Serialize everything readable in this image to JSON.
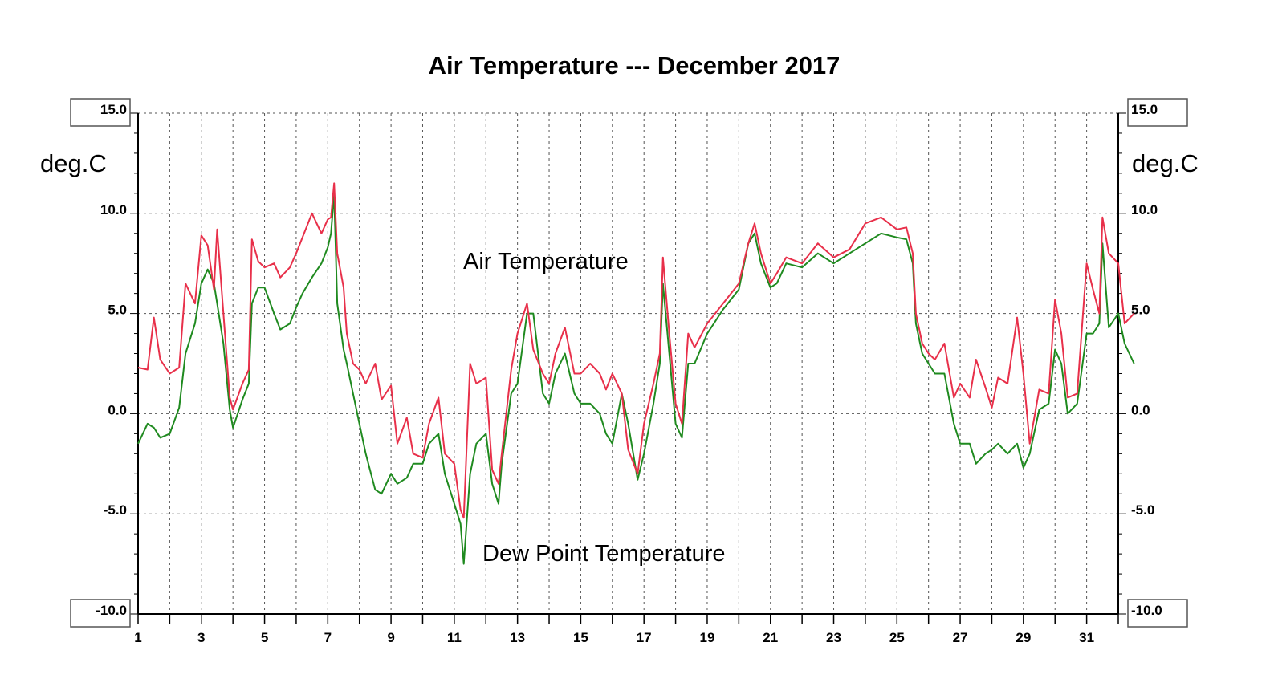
{
  "chart_data": {
    "type": "line",
    "title": "Air Temperature --- December 2017",
    "ylabel_left": "deg.C",
    "ylabel_right": "deg.C",
    "xlabel": "",
    "xlim": [
      1,
      32
    ],
    "ylim": [
      -10,
      15
    ],
    "x_tick_labels": [
      "1",
      "3",
      "5",
      "7",
      "9",
      "11",
      "13",
      "15",
      "17",
      "19",
      "21",
      "23",
      "25",
      "27",
      "29",
      "31"
    ],
    "y_tick_labels": [
      "15.0",
      "10.0",
      "5.0",
      "0.0",
      "-5.0",
      "-10.0"
    ],
    "grid": true,
    "annotations": [
      "Air Temperature",
      "Dew Point Temperature"
    ],
    "series": [
      {
        "name": "Air Temperature",
        "color": "#e8304a",
        "points": [
          [
            1.0,
            2.3
          ],
          [
            1.3,
            2.2
          ],
          [
            1.5,
            4.8
          ],
          [
            1.7,
            2.7
          ],
          [
            2.0,
            2.0
          ],
          [
            2.3,
            2.3
          ],
          [
            2.5,
            6.5
          ],
          [
            2.8,
            5.5
          ],
          [
            3.0,
            8.9
          ],
          [
            3.2,
            8.4
          ],
          [
            3.4,
            6.2
          ],
          [
            3.5,
            9.2
          ],
          [
            3.7,
            5.0
          ],
          [
            3.9,
            0.8
          ],
          [
            4.0,
            0.2
          ],
          [
            4.3,
            1.5
          ],
          [
            4.5,
            2.2
          ],
          [
            4.6,
            8.7
          ],
          [
            4.8,
            7.6
          ],
          [
            5.0,
            7.3
          ],
          [
            5.3,
            7.5
          ],
          [
            5.5,
            6.8
          ],
          [
            5.8,
            7.3
          ],
          [
            6.0,
            8.0
          ],
          [
            6.2,
            8.8
          ],
          [
            6.5,
            10.0
          ],
          [
            6.8,
            9.0
          ],
          [
            7.0,
            9.7
          ],
          [
            7.1,
            9.8
          ],
          [
            7.2,
            11.5
          ],
          [
            7.3,
            8.0
          ],
          [
            7.5,
            6.3
          ],
          [
            7.6,
            4.0
          ],
          [
            7.8,
            2.5
          ],
          [
            8.0,
            2.2
          ],
          [
            8.2,
            1.5
          ],
          [
            8.5,
            2.5
          ],
          [
            8.7,
            0.7
          ],
          [
            9.0,
            1.4
          ],
          [
            9.2,
            -1.5
          ],
          [
            9.5,
            -0.2
          ],
          [
            9.7,
            -2.0
          ],
          [
            10.0,
            -2.2
          ],
          [
            10.2,
            -0.5
          ],
          [
            10.5,
            0.8
          ],
          [
            10.7,
            -2.0
          ],
          [
            11.0,
            -2.5
          ],
          [
            11.2,
            -4.8
          ],
          [
            11.3,
            -5.2
          ],
          [
            11.5,
            2.5
          ],
          [
            11.7,
            1.5
          ],
          [
            12.0,
            1.8
          ],
          [
            12.2,
            -2.8
          ],
          [
            12.4,
            -3.5
          ],
          [
            12.5,
            -2.0
          ],
          [
            12.8,
            2.2
          ],
          [
            13.0,
            4.0
          ],
          [
            13.3,
            5.5
          ],
          [
            13.5,
            3.2
          ],
          [
            13.8,
            2.0
          ],
          [
            14.0,
            1.5
          ],
          [
            14.2,
            3.0
          ],
          [
            14.5,
            4.3
          ],
          [
            14.8,
            2.0
          ],
          [
            15.0,
            2.0
          ],
          [
            15.3,
            2.5
          ],
          [
            15.6,
            2.0
          ],
          [
            15.8,
            1.2
          ],
          [
            16.0,
            2.0
          ],
          [
            16.3,
            1.0
          ],
          [
            16.5,
            -1.8
          ],
          [
            16.8,
            -3.0
          ],
          [
            17.0,
            -0.5
          ],
          [
            17.3,
            1.5
          ],
          [
            17.5,
            3.0
          ],
          [
            17.6,
            7.8
          ],
          [
            17.8,
            4.0
          ],
          [
            18.0,
            0.5
          ],
          [
            18.2,
            -0.5
          ],
          [
            18.4,
            4.0
          ],
          [
            18.6,
            3.3
          ],
          [
            19.0,
            4.5
          ],
          [
            19.5,
            5.5
          ],
          [
            20.0,
            6.5
          ],
          [
            20.3,
            8.5
          ],
          [
            20.5,
            9.5
          ],
          [
            20.7,
            8.0
          ],
          [
            21.0,
            6.5
          ],
          [
            21.2,
            7.0
          ],
          [
            21.5,
            7.8
          ],
          [
            22.0,
            7.5
          ],
          [
            22.5,
            8.5
          ],
          [
            23.0,
            7.8
          ],
          [
            23.5,
            8.2
          ],
          [
            24.0,
            9.5
          ],
          [
            24.5,
            9.8
          ],
          [
            25.0,
            9.2
          ],
          [
            25.3,
            9.3
          ],
          [
            25.5,
            8.0
          ],
          [
            25.6,
            5.0
          ],
          [
            25.8,
            3.5
          ],
          [
            26.0,
            3.0
          ],
          [
            26.2,
            2.7
          ],
          [
            26.5,
            3.5
          ],
          [
            26.8,
            0.8
          ],
          [
            27.0,
            1.5
          ],
          [
            27.3,
            0.8
          ],
          [
            27.5,
            2.7
          ],
          [
            27.8,
            1.3
          ],
          [
            28.0,
            0.3
          ],
          [
            28.2,
            1.8
          ],
          [
            28.5,
            1.5
          ],
          [
            28.8,
            4.8
          ],
          [
            29.0,
            2.0
          ],
          [
            29.2,
            -1.5
          ],
          [
            29.5,
            1.2
          ],
          [
            29.8,
            1.0
          ],
          [
            30.0,
            5.7
          ],
          [
            30.2,
            4.0
          ],
          [
            30.4,
            0.8
          ],
          [
            30.7,
            1.0
          ],
          [
            31.0,
            7.5
          ],
          [
            31.2,
            6.2
          ],
          [
            31.4,
            5.0
          ],
          [
            31.5,
            9.8
          ],
          [
            31.7,
            8.0
          ],
          [
            32.0,
            7.5
          ],
          [
            32.2,
            4.5
          ],
          [
            32.5,
            5.0
          ]
        ]
      },
      {
        "name": "Dew Point Temperature",
        "color": "#1f8a1f",
        "points": [
          [
            1.0,
            -1.5
          ],
          [
            1.3,
            -0.5
          ],
          [
            1.5,
            -0.7
          ],
          [
            1.7,
            -1.2
          ],
          [
            2.0,
            -1.0
          ],
          [
            2.3,
            0.3
          ],
          [
            2.5,
            3.0
          ],
          [
            2.8,
            4.5
          ],
          [
            3.0,
            6.5
          ],
          [
            3.2,
            7.2
          ],
          [
            3.4,
            6.5
          ],
          [
            3.5,
            5.5
          ],
          [
            3.7,
            3.5
          ],
          [
            3.9,
            0.2
          ],
          [
            4.0,
            -0.7
          ],
          [
            4.3,
            0.7
          ],
          [
            4.5,
            1.5
          ],
          [
            4.6,
            5.5
          ],
          [
            4.8,
            6.3
          ],
          [
            5.0,
            6.3
          ],
          [
            5.3,
            5.0
          ],
          [
            5.5,
            4.2
          ],
          [
            5.8,
            4.5
          ],
          [
            6.0,
            5.3
          ],
          [
            6.2,
            6.0
          ],
          [
            6.5,
            6.8
          ],
          [
            6.8,
            7.5
          ],
          [
            7.0,
            8.3
          ],
          [
            7.1,
            9.0
          ],
          [
            7.2,
            11.0
          ],
          [
            7.3,
            5.5
          ],
          [
            7.5,
            3.2
          ],
          [
            7.6,
            2.5
          ],
          [
            7.8,
            1.0
          ],
          [
            8.0,
            -0.5
          ],
          [
            8.2,
            -2.0
          ],
          [
            8.5,
            -3.8
          ],
          [
            8.7,
            -4.0
          ],
          [
            9.0,
            -3.0
          ],
          [
            9.2,
            -3.5
          ],
          [
            9.5,
            -3.2
          ],
          [
            9.7,
            -2.5
          ],
          [
            10.0,
            -2.5
          ],
          [
            10.2,
            -1.5
          ],
          [
            10.5,
            -1.0
          ],
          [
            10.7,
            -3.0
          ],
          [
            11.0,
            -4.5
          ],
          [
            11.2,
            -5.5
          ],
          [
            11.3,
            -7.5
          ],
          [
            11.5,
            -3.0
          ],
          [
            11.7,
            -1.5
          ],
          [
            12.0,
            -1.0
          ],
          [
            12.2,
            -3.5
          ],
          [
            12.4,
            -4.5
          ],
          [
            12.5,
            -2.5
          ],
          [
            12.8,
            1.0
          ],
          [
            13.0,
            1.5
          ],
          [
            13.3,
            5.0
          ],
          [
            13.5,
            5.0
          ],
          [
            13.8,
            1.0
          ],
          [
            14.0,
            0.5
          ],
          [
            14.2,
            2.0
          ],
          [
            14.5,
            3.0
          ],
          [
            14.8,
            1.0
          ],
          [
            15.0,
            0.5
          ],
          [
            15.3,
            0.5
          ],
          [
            15.6,
            0.0
          ],
          [
            15.8,
            -1.0
          ],
          [
            16.0,
            -1.5
          ],
          [
            16.3,
            1.0
          ],
          [
            16.5,
            -0.5
          ],
          [
            16.8,
            -3.3
          ],
          [
            17.0,
            -2.0
          ],
          [
            17.3,
            0.5
          ],
          [
            17.5,
            2.5
          ],
          [
            17.6,
            6.5
          ],
          [
            17.8,
            3.0
          ],
          [
            18.0,
            -0.5
          ],
          [
            18.2,
            -1.2
          ],
          [
            18.4,
            2.5
          ],
          [
            18.6,
            2.5
          ],
          [
            19.0,
            4.0
          ],
          [
            19.5,
            5.2
          ],
          [
            20.0,
            6.2
          ],
          [
            20.3,
            8.5
          ],
          [
            20.5,
            9.0
          ],
          [
            20.7,
            7.5
          ],
          [
            21.0,
            6.3
          ],
          [
            21.2,
            6.5
          ],
          [
            21.5,
            7.5
          ],
          [
            22.0,
            7.3
          ],
          [
            22.5,
            8.0
          ],
          [
            23.0,
            7.5
          ],
          [
            23.5,
            8.0
          ],
          [
            24.0,
            8.5
          ],
          [
            24.5,
            9.0
          ],
          [
            25.0,
            8.8
          ],
          [
            25.3,
            8.7
          ],
          [
            25.5,
            7.5
          ],
          [
            25.6,
            4.5
          ],
          [
            25.8,
            3.0
          ],
          [
            26.0,
            2.5
          ],
          [
            26.2,
            2.0
          ],
          [
            26.5,
            2.0
          ],
          [
            26.8,
            -0.5
          ],
          [
            27.0,
            -1.5
          ],
          [
            27.3,
            -1.5
          ],
          [
            27.5,
            -2.5
          ],
          [
            27.8,
            -2.0
          ],
          [
            28.0,
            -1.8
          ],
          [
            28.2,
            -1.5
          ],
          [
            28.5,
            -2.0
          ],
          [
            28.8,
            -1.5
          ],
          [
            29.0,
            -2.7
          ],
          [
            29.2,
            -2.0
          ],
          [
            29.5,
            0.2
          ],
          [
            29.8,
            0.5
          ],
          [
            30.0,
            3.2
          ],
          [
            30.2,
            2.5
          ],
          [
            30.4,
            0.0
          ],
          [
            30.7,
            0.5
          ],
          [
            31.0,
            4.0
          ],
          [
            31.2,
            4.0
          ],
          [
            31.4,
            4.5
          ],
          [
            31.5,
            8.5
          ],
          [
            31.7,
            4.3
          ],
          [
            32.0,
            5.0
          ],
          [
            32.2,
            3.5
          ],
          [
            32.5,
            2.5
          ]
        ]
      }
    ]
  }
}
